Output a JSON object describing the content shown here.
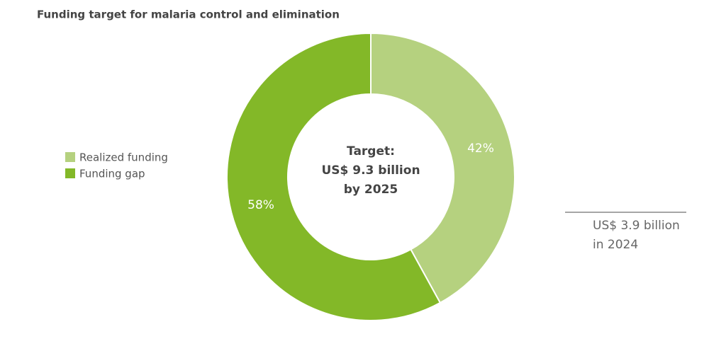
{
  "chart_data": {
    "type": "pie",
    "donut": true,
    "title": "Funding target for malaria control and elimination",
    "categories": [
      "Realized funding",
      "Funding gap"
    ],
    "values": [
      42,
      58
    ],
    "value_labels": [
      "42%",
      "58%"
    ],
    "colors": [
      "#b5d17f",
      "#83b828"
    ],
    "center_text": [
      "Target:",
      "US$ 9.3 billion",
      "by 2025"
    ],
    "annotation": [
      "US$ 3.9 billion",
      "in 2024"
    ]
  }
}
